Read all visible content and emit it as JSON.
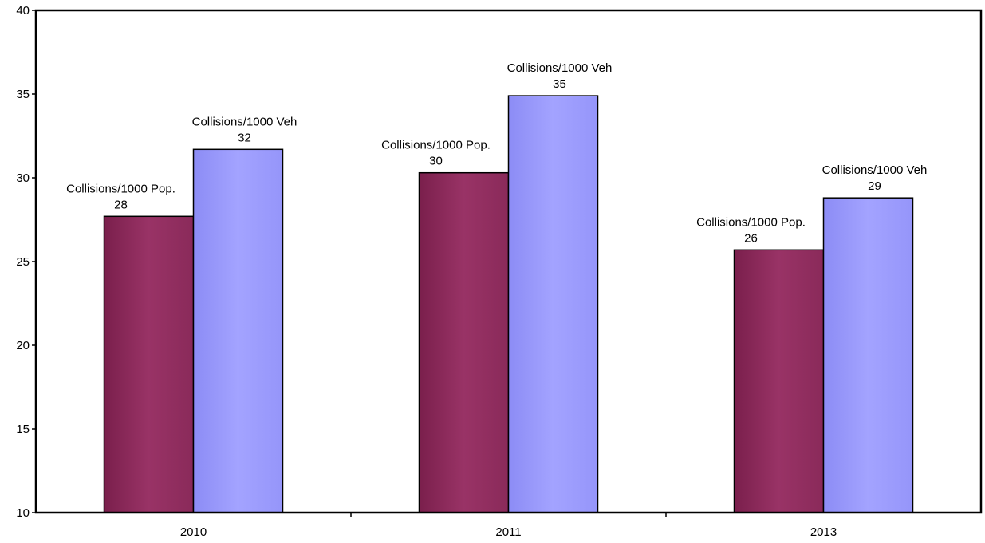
{
  "chart_data": {
    "type": "bar",
    "title": "",
    "xlabel": "",
    "ylabel": "",
    "categories": [
      "2010",
      "2011",
      "2013"
    ],
    "ylim": [
      10,
      40
    ],
    "yticks": [
      10,
      15,
      20,
      25,
      30,
      35,
      40
    ],
    "grid": false,
    "legend": "none",
    "series": [
      {
        "label": "Collisions/1000 Pop.",
        "values": [
          27.7,
          30.3,
          25.7
        ],
        "data_labels": [
          "28",
          "30",
          "26"
        ],
        "color": "#993366"
      },
      {
        "label": "Collisions/1000 Veh",
        "values": [
          31.7,
          34.9,
          28.8
        ],
        "data_labels": [
          "32",
          "35",
          "29"
        ],
        "color": "#9999ff"
      }
    ]
  }
}
